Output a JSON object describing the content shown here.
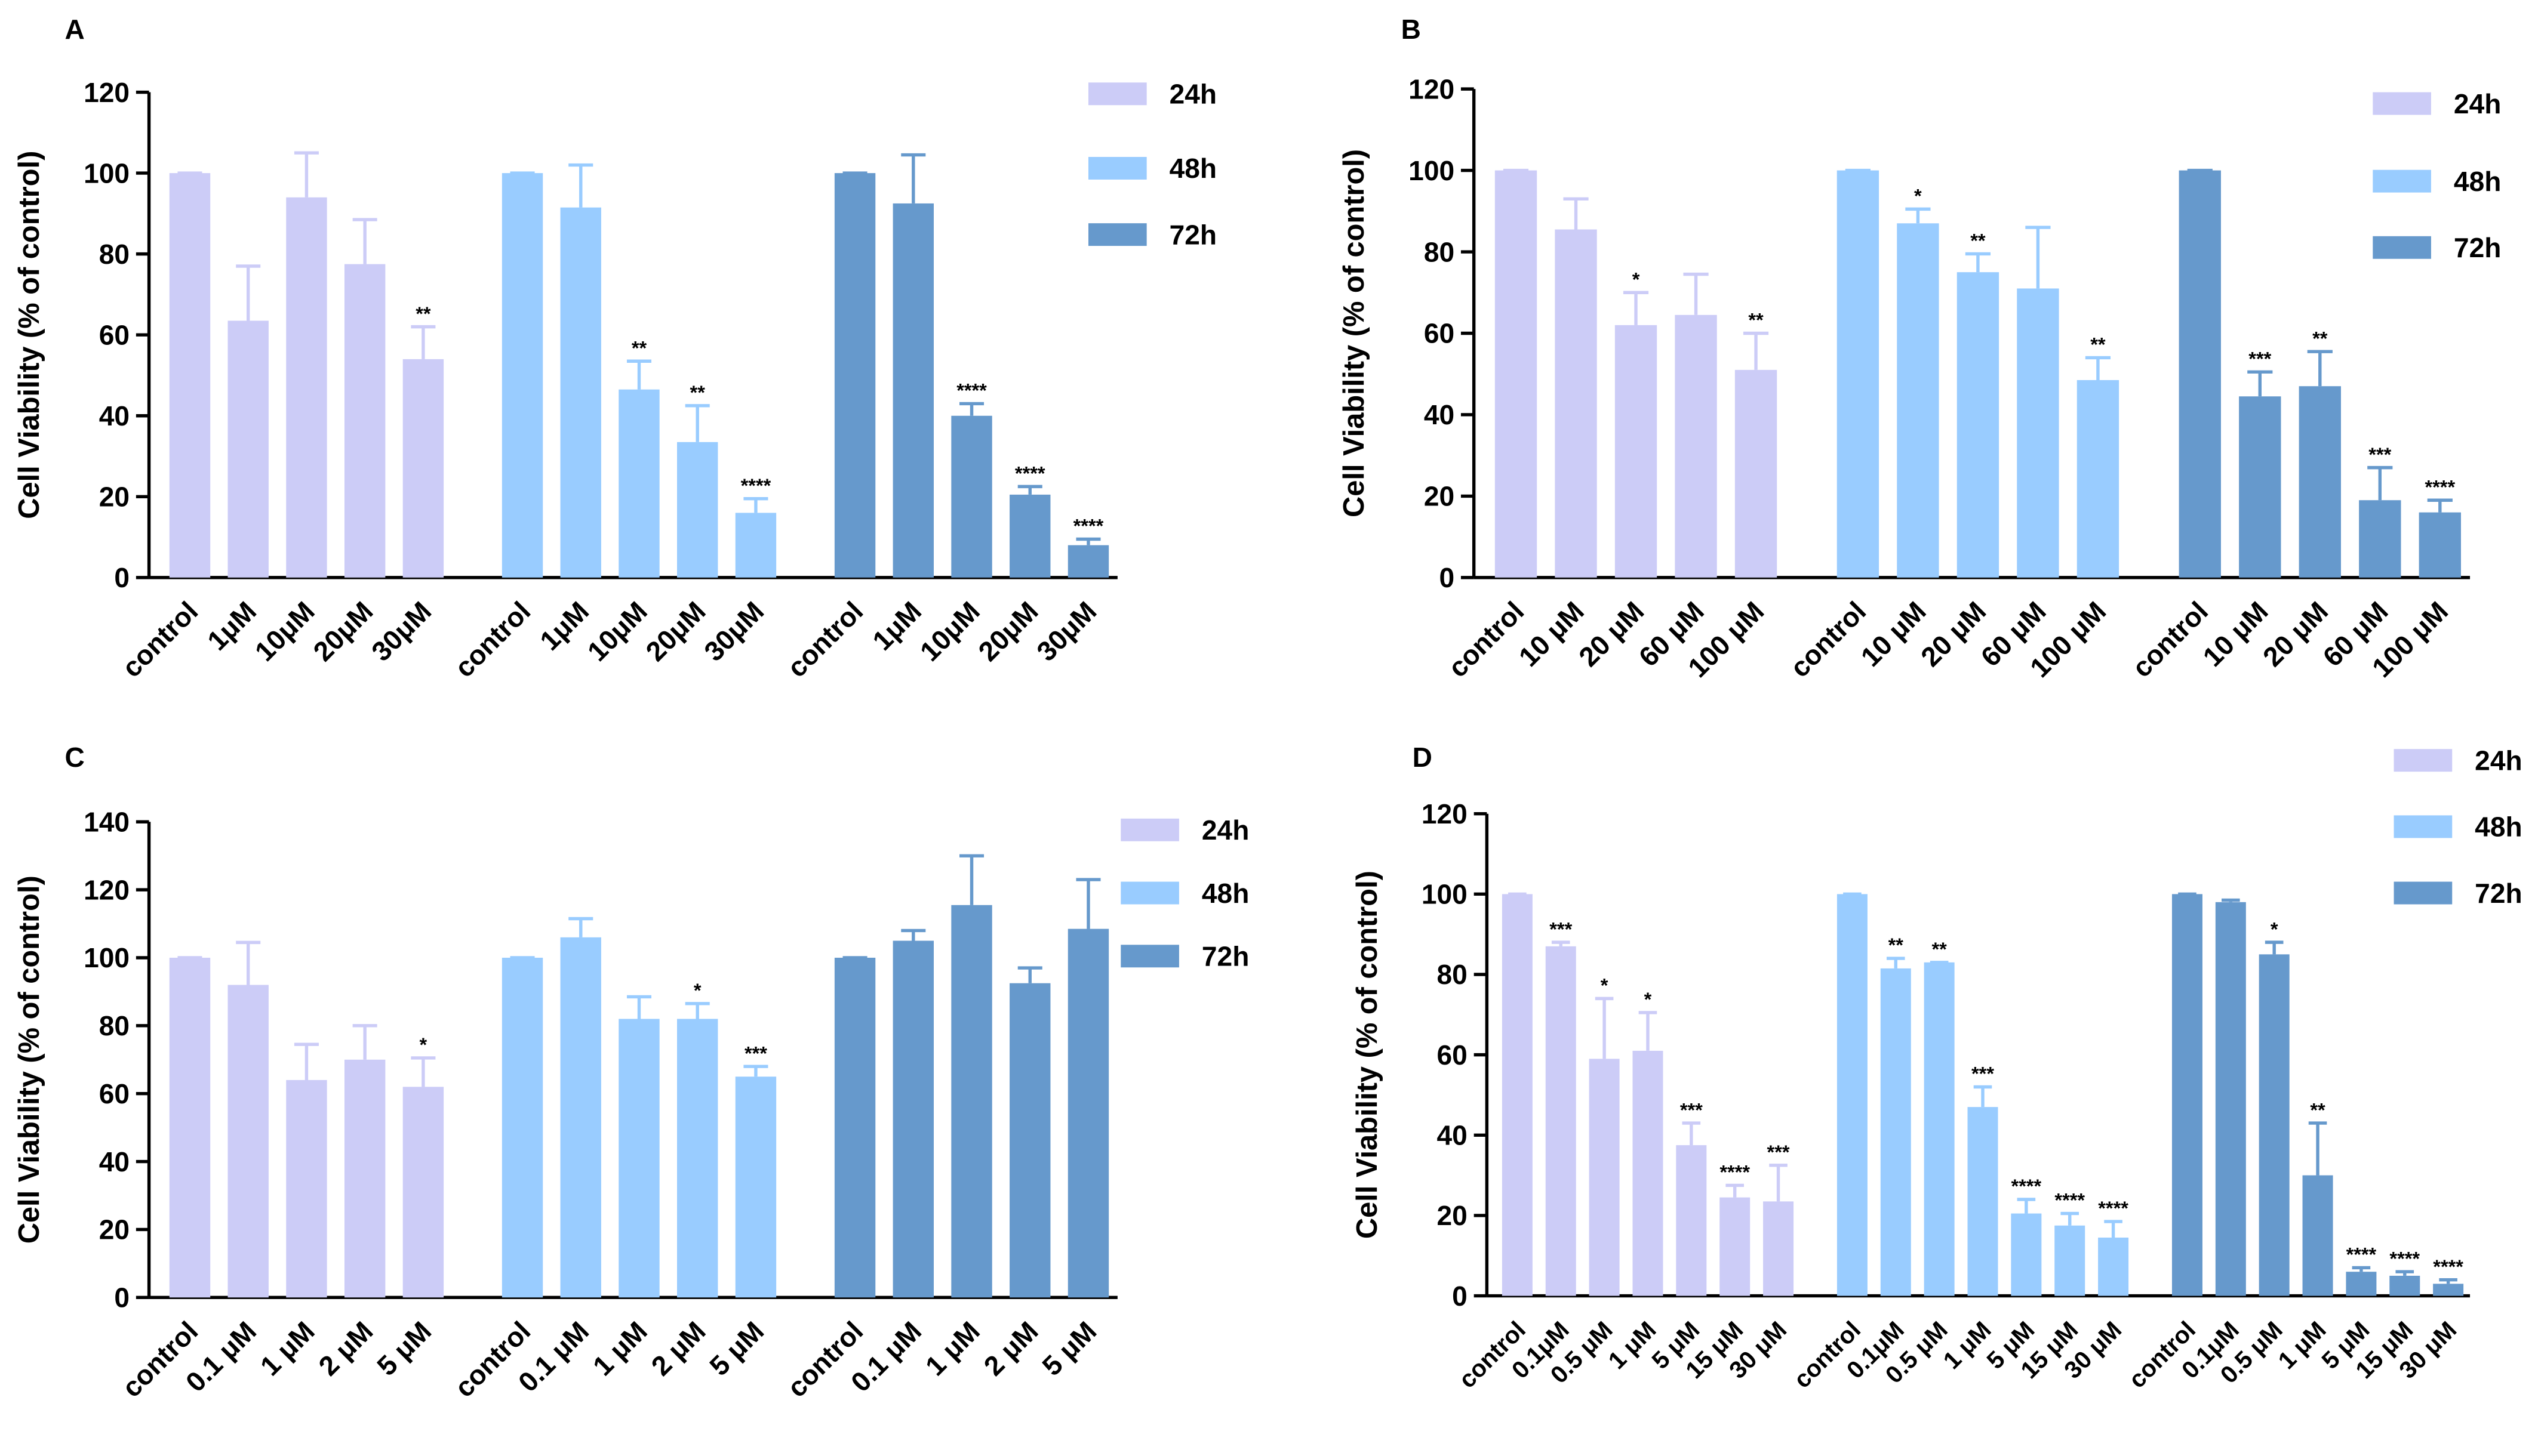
{
  "chart_data": [
    {
      "type": "bar",
      "panel": "A",
      "ylabel": "Cell Viability (% of control)",
      "ylim": [
        0,
        120
      ],
      "yticks": [
        0,
        20,
        40,
        60,
        80,
        100,
        120
      ],
      "categories": [
        "control",
        "1μM",
        "10μM",
        "20μM",
        "30μM"
      ],
      "series": [
        {
          "name": "24h",
          "color": "#ccccf7",
          "values": [
            100,
            63.5,
            94,
            77.5,
            54
          ],
          "errors": [
            0,
            13.5,
            11,
            11,
            8
          ],
          "annotations": [
            null,
            null,
            null,
            null,
            "**"
          ]
        },
        {
          "name": "48h",
          "color": "#99ccff",
          "values": [
            100,
            91.5,
            46.5,
            33.5,
            16
          ],
          "errors": [
            0,
            10.5,
            7,
            9,
            3.5
          ],
          "annotations": [
            null,
            null,
            "**",
            "**",
            "****"
          ]
        },
        {
          "name": "72h",
          "color": "#6699cc",
          "values": [
            100,
            92.5,
            40,
            20.5,
            8
          ],
          "errors": [
            0,
            12,
            3,
            2,
            1.5
          ],
          "annotations": [
            null,
            null,
            "****",
            "****",
            "****"
          ]
        }
      ]
    },
    {
      "type": "bar",
      "panel": "B",
      "ylabel": "Cell Viability (% of control)",
      "ylim": [
        0,
        120
      ],
      "yticks": [
        0,
        20,
        40,
        60,
        80,
        100,
        120
      ],
      "categories": [
        "control",
        "10 μM",
        "20 μM",
        "60 μM",
        "100 μM"
      ],
      "series": [
        {
          "name": "24h",
          "color": "#ccccf7",
          "values": [
            100,
            85.5,
            62,
            64.5,
            51
          ],
          "errors": [
            0,
            7.5,
            8,
            10,
            9
          ],
          "annotations": [
            null,
            null,
            "*",
            null,
            "**"
          ]
        },
        {
          "name": "48h",
          "color": "#99ccff",
          "values": [
            100,
            87,
            75,
            71,
            48.5
          ],
          "errors": [
            0,
            3.5,
            4.5,
            15,
            5.5
          ],
          "annotations": [
            null,
            "*",
            "**",
            null,
            "**"
          ]
        },
        {
          "name": "72h",
          "color": "#6699cc",
          "values": [
            100,
            44.5,
            47,
            19,
            16
          ],
          "errors": [
            0,
            6,
            8.5,
            8,
            3
          ],
          "annotations": [
            null,
            "***",
            "**",
            "***",
            "****"
          ]
        }
      ]
    },
    {
      "type": "bar",
      "panel": "C",
      "ylabel": "Cell Viability (% of control)",
      "ylim": [
        0,
        140
      ],
      "yticks": [
        0,
        20,
        40,
        60,
        80,
        100,
        120,
        140
      ],
      "categories": [
        "control",
        "0.1 μM",
        "1 μM",
        "2 μM",
        "5 μM"
      ],
      "series": [
        {
          "name": "24h",
          "color": "#ccccf7",
          "values": [
            100,
            92,
            64,
            70,
            62
          ],
          "errors": [
            0,
            12.5,
            10.5,
            10,
            8.5
          ],
          "annotations": [
            null,
            null,
            null,
            null,
            "*"
          ]
        },
        {
          "name": "48h",
          "color": "#99ccff",
          "values": [
            100,
            106,
            82,
            82,
            65
          ],
          "errors": [
            0,
            5.5,
            6.5,
            4.5,
            3
          ],
          "annotations": [
            null,
            null,
            null,
            "*",
            "***"
          ]
        },
        {
          "name": "72h",
          "color": "#6699cc",
          "values": [
            100,
            105,
            115.5,
            92.5,
            108.5
          ],
          "errors": [
            0,
            3,
            14.5,
            4.5,
            14.5
          ],
          "annotations": [
            null,
            null,
            null,
            null,
            null
          ]
        }
      ]
    },
    {
      "type": "bar",
      "panel": "D",
      "ylabel": "Cell Viability (% of control)",
      "ylim": [
        0,
        120
      ],
      "yticks": [
        0,
        20,
        40,
        60,
        80,
        100,
        120
      ],
      "categories": [
        "control",
        "0.1μM",
        "0.5 μM",
        "1 μM",
        "5 μM",
        "15 μM",
        "30 μM"
      ],
      "series": [
        {
          "name": "24h",
          "color": "#ccccf7",
          "values": [
            100,
            87,
            59,
            61,
            37.5,
            24.5,
            23.5
          ],
          "errors": [
            0,
            1,
            15,
            9.5,
            5.5,
            3,
            9
          ],
          "annotations": [
            null,
            "***",
            "*",
            "*",
            "***",
            "****",
            "***"
          ]
        },
        {
          "name": "48h",
          "color": "#99ccff",
          "values": [
            100,
            81.5,
            83,
            47,
            20.5,
            17.5,
            14.5
          ],
          "errors": [
            0,
            2.5,
            0,
            5,
            3.5,
            3,
            4
          ],
          "annotations": [
            null,
            "**",
            "**",
            "***",
            "****",
            "****",
            "****"
          ]
        },
        {
          "name": "72h",
          "color": "#6699cc",
          "values": [
            100,
            98,
            85,
            30,
            6,
            5,
            3
          ],
          "errors": [
            0,
            0.5,
            3,
            13,
            1,
            1,
            1
          ],
          "annotations": [
            null,
            null,
            "*",
            "**",
            "****",
            "****",
            "****"
          ]
        }
      ]
    }
  ]
}
